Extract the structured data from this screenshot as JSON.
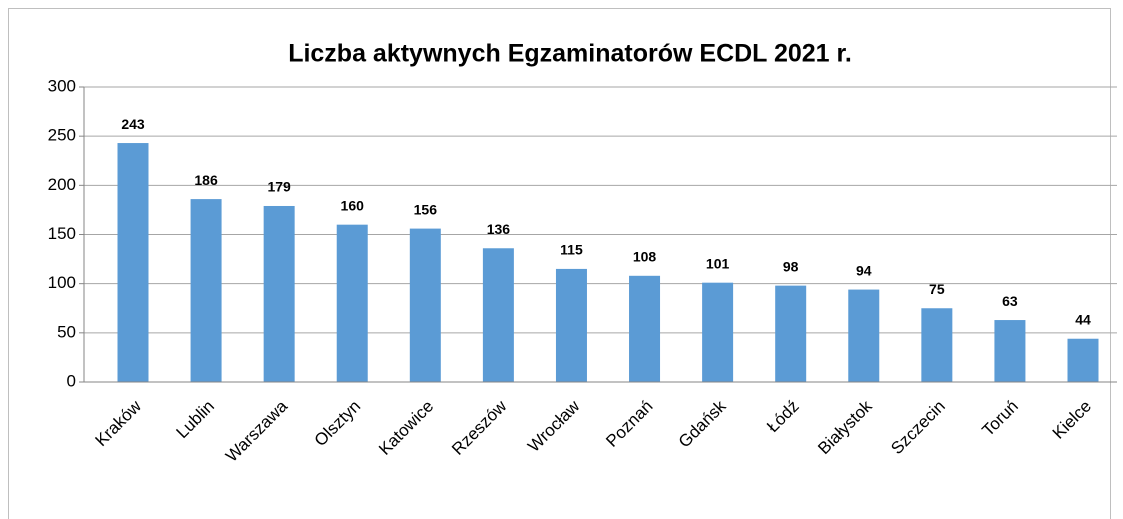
{
  "chart_data": {
    "type": "bar",
    "title": "Liczba aktywnych Egzaminatorów ECDL 2021 r.",
    "categories": [
      "Kraków",
      "Lublin",
      "Warszawa",
      "Olsztyn",
      "Katowice",
      "Rzeszów",
      "Wrocław",
      "Poznań",
      "Gdańsk",
      "Łódź",
      "Białystok",
      "Szczecin",
      "Toruń",
      "Kielce"
    ],
    "values": [
      243,
      186,
      179,
      160,
      156,
      136,
      115,
      108,
      101,
      98,
      94,
      75,
      63,
      44
    ],
    "color": "#5b9bd5",
    "ylim": [
      0,
      300
    ],
    "yticks": [
      0,
      50,
      100,
      150,
      200,
      250,
      300
    ],
    "grid": true
  }
}
